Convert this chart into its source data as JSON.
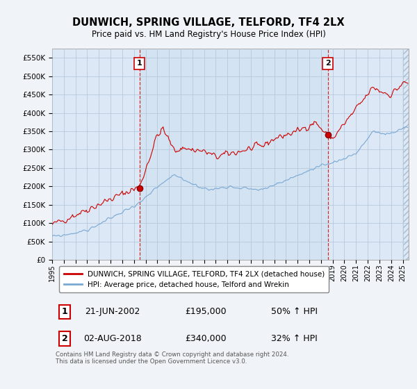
{
  "title": "DUNWICH, SPRING VILLAGE, TELFORD, TF4 2LX",
  "subtitle": "Price paid vs. HM Land Registry's House Price Index (HPI)",
  "ylim": [
    0,
    575000
  ],
  "xlim_start": 1995.0,
  "xlim_end": 2025.5,
  "legend_red": "DUNWICH, SPRING VILLAGE, TELFORD, TF4 2LX (detached house)",
  "legend_blue": "HPI: Average price, detached house, Telford and Wrekin",
  "point1_label": "1",
  "point1_date": "21-JUN-2002",
  "point1_price": "£195,000",
  "point1_hpi": "50% ↑ HPI",
  "point1_x": 2002.47,
  "point1_y": 195000,
  "point2_label": "2",
  "point2_date": "02-AUG-2018",
  "point2_price": "£340,000",
  "point2_hpi": "32% ↑ HPI",
  "point2_x": 2018.58,
  "point2_y": 340000,
  "footnote": "Contains HM Land Registry data © Crown copyright and database right 2024.\nThis data is licensed under the Open Government Licence v3.0.",
  "red_color": "#cc0000",
  "blue_color": "#7aa8d4",
  "bg_color": "#f0f4f8",
  "plot_bg": "#dce8f5",
  "grid_color": "#b0c4d8",
  "shade_color": "#dce8f5"
}
